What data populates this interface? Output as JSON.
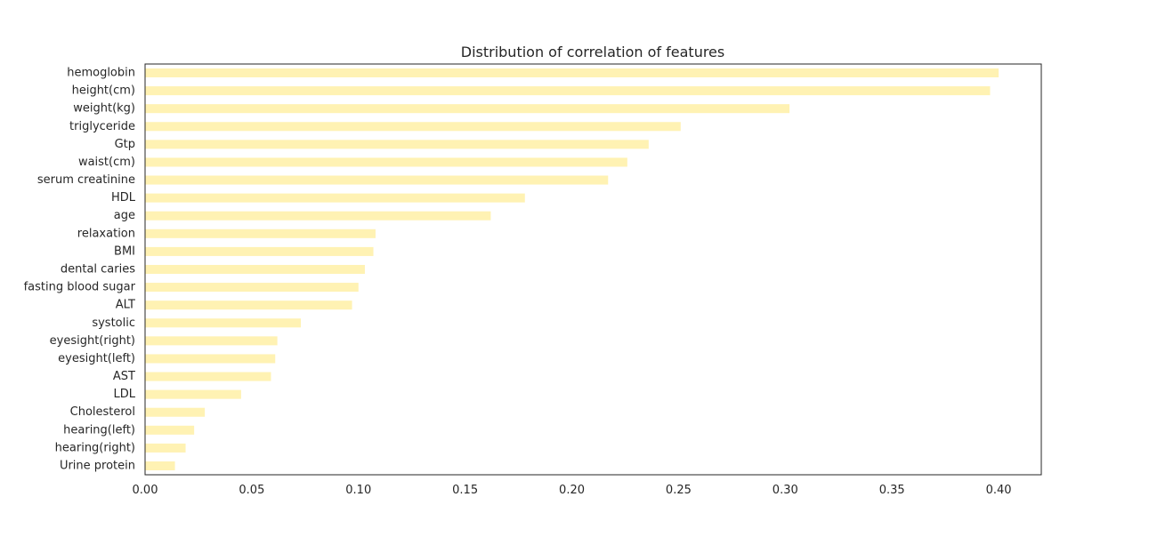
{
  "chart_data": {
    "type": "bar",
    "orientation": "horizontal",
    "title": "Distribution of correlation of features",
    "xlabel": "",
    "ylabel": "",
    "xlim": [
      0,
      0.42
    ],
    "xticks": [
      0.0,
      0.05,
      0.1,
      0.15,
      0.2,
      0.25,
      0.3,
      0.35,
      0.4
    ],
    "xtick_labels": [
      "0.00",
      "0.05",
      "0.10",
      "0.15",
      "0.20",
      "0.25",
      "0.30",
      "0.35",
      "0.40"
    ],
    "grid": false,
    "bar_color": "#fff2b3",
    "categories": [
      "hemoglobin",
      "height(cm)",
      "weight(kg)",
      "triglyceride",
      "Gtp",
      "waist(cm)",
      "serum creatinine",
      "HDL",
      "age",
      "relaxation",
      "BMI",
      "dental caries",
      "fasting blood sugar",
      "ALT",
      "systolic",
      "eyesight(right)",
      "eyesight(left)",
      "AST",
      "LDL",
      "Cholesterol",
      "hearing(left)",
      "hearing(right)",
      "Urine protein"
    ],
    "values": [
      0.4,
      0.396,
      0.302,
      0.251,
      0.236,
      0.226,
      0.217,
      0.178,
      0.162,
      0.108,
      0.107,
      0.103,
      0.1,
      0.097,
      0.073,
      0.062,
      0.061,
      0.059,
      0.045,
      0.028,
      0.023,
      0.019,
      0.014
    ]
  }
}
